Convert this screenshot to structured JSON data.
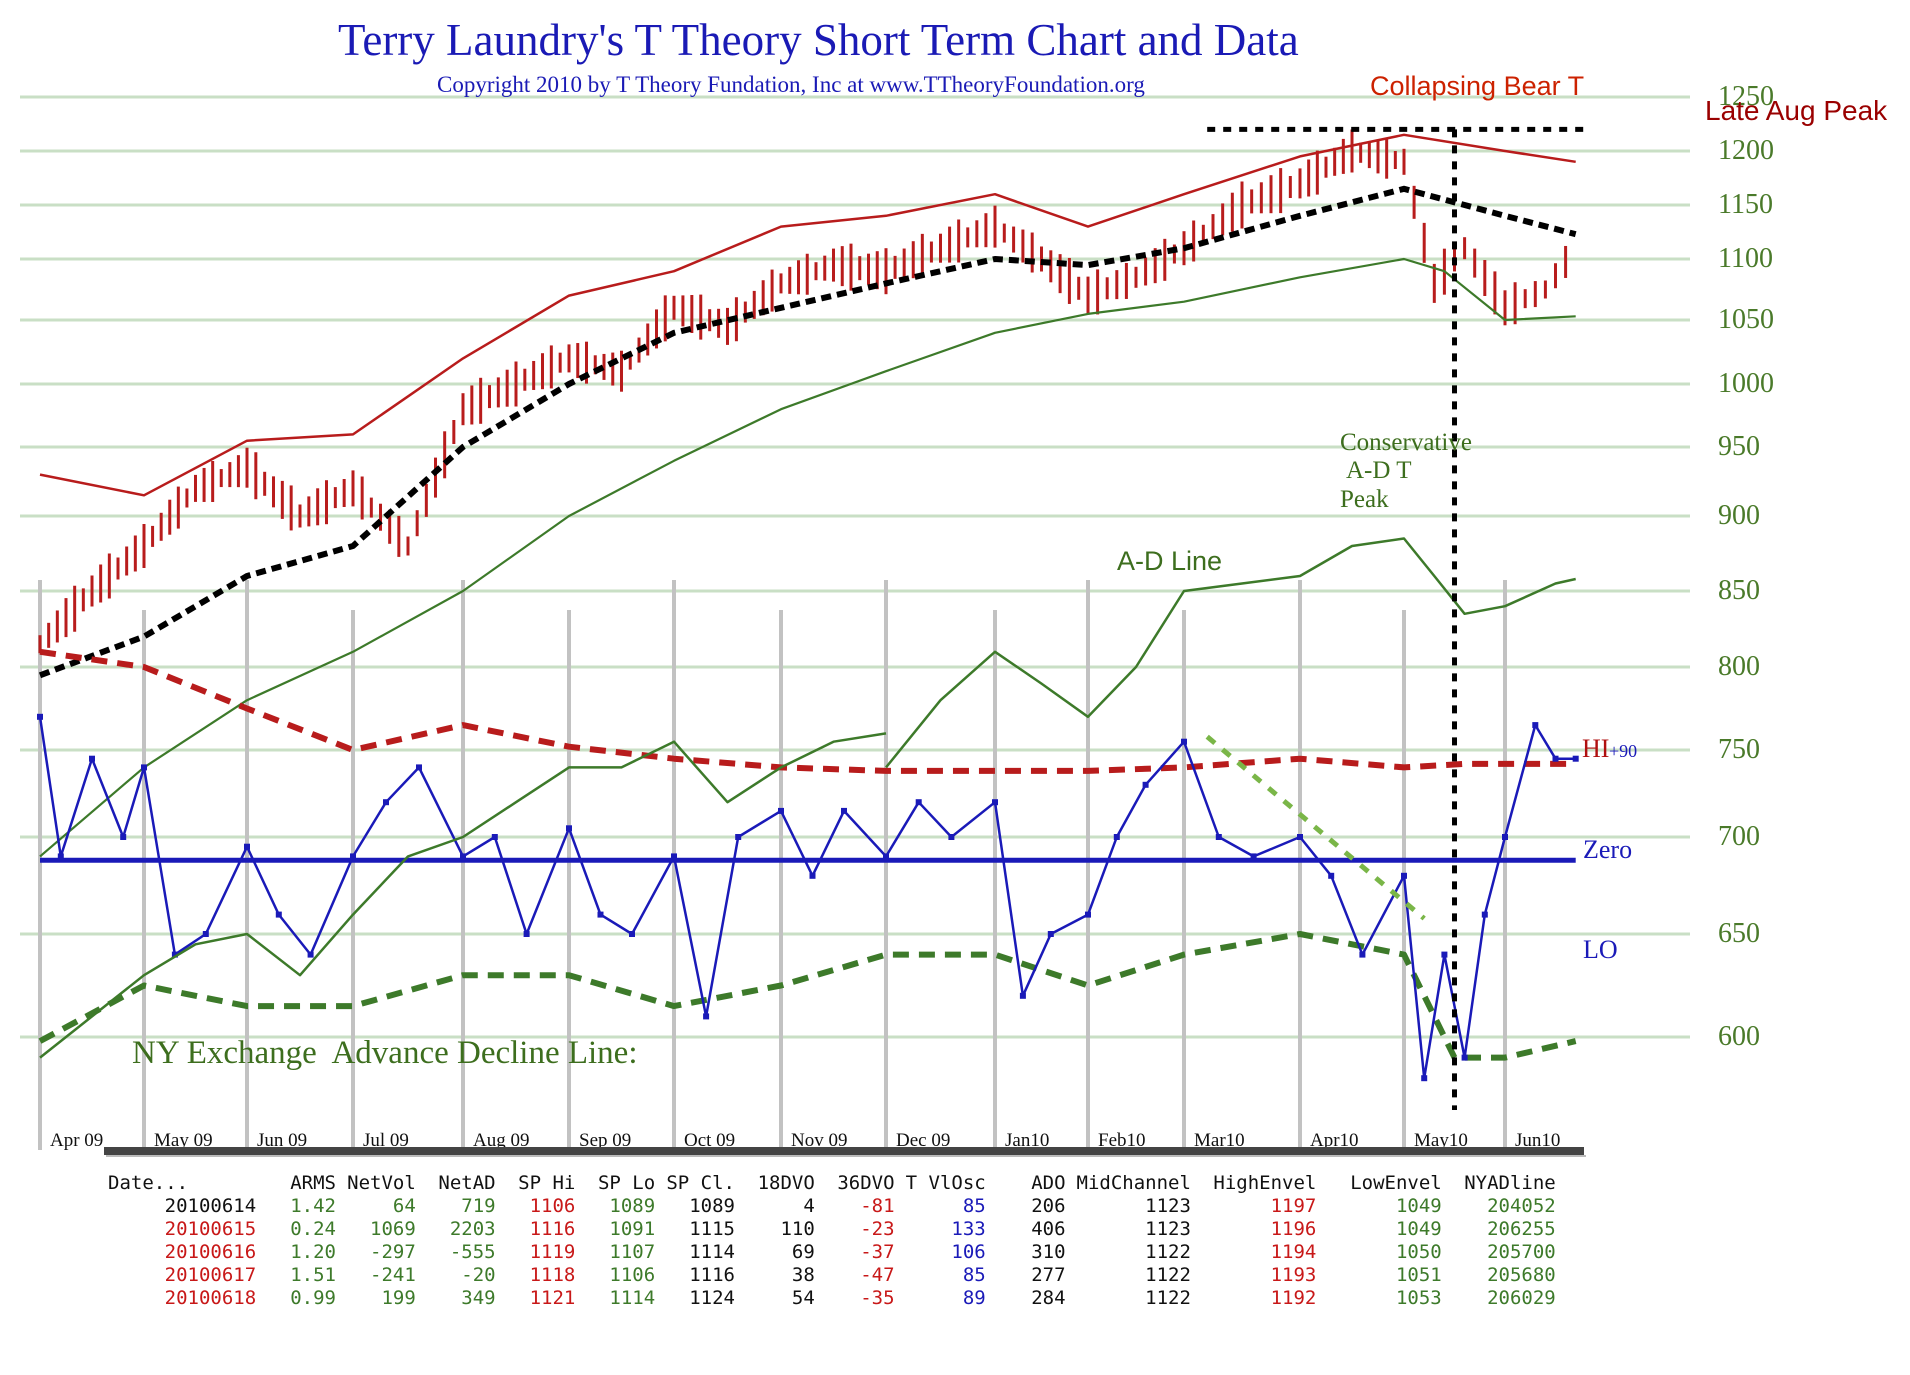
{
  "header": {
    "title": "Terry Laundry's T Theory Short Term Chart and Data",
    "copyright": "Copyright 2010 by T Theory Fundation, Inc at www.TTheoryFoundation.org"
  },
  "chart_data": {
    "type": "line",
    "title": "Terry Laundry's T Theory Short Term Chart and Data",
    "subtitle": "Copyright 2010 by T Theory Fundation, Inc at www.TTheoryFoundation.org",
    "xlabel": "",
    "ylabel": "",
    "x_ticks": [
      "Apr 09",
      "May 09",
      "Jun 09",
      "Jul 09",
      "Aug 09",
      "Sep 09",
      "Oct 09",
      "Nov 09",
      "Dec 09",
      "Jan10",
      "Feb10",
      "Mar10",
      "Apr10",
      "May10",
      "Jun10"
    ],
    "y_ticks": [
      1250,
      1200,
      1150,
      1100,
      1050,
      1000,
      950,
      900,
      850,
      800,
      750,
      700,
      650,
      600
    ],
    "ylim": [
      570,
      1260
    ],
    "grid": true,
    "legend": "none",
    "annotations": [
      {
        "text": "Collapsing Bear T",
        "color": "#cc2200"
      },
      {
        "text": "Late Aug Peak",
        "color": "#9a0000"
      },
      {
        "text": "Conservative",
        "color": "#3d6e1e"
      },
      {
        "text": "A-D T",
        "color": "#3d6e1e"
      },
      {
        "text": "Peak",
        "color": "#3d6e1e"
      },
      {
        "text": "A-D Line",
        "color": "#3d6e1e"
      },
      {
        "text": "HI",
        "color": "#b01010"
      },
      {
        "text": "+90",
        "color": "#1a1ab8"
      },
      {
        "text": "Zero",
        "color": "#1a1ab8"
      },
      {
        "text": "LO",
        "color": "#1a1ab8"
      },
      {
        "text": "NY Exchange  Advance Decline Line:",
        "color": "#3d6e1e"
      }
    ],
    "series": [
      {
        "name": "S&P 500 price bars (approx close)",
        "color": "#b81c1c",
        "month_index": [
          0,
          0.5,
          1,
          1.5,
          2,
          2.5,
          3,
          3.5,
          4,
          4.5,
          5,
          5.5,
          6,
          6.5,
          7,
          7.5,
          8,
          8.5,
          9,
          9.5,
          10,
          10.5,
          11,
          11.5,
          12,
          12.5,
          13,
          13.3,
          13.6,
          14,
          14.4,
          14.7
        ],
        "values": [
          815,
          850,
          880,
          920,
          935,
          900,
          920,
          880,
          980,
          1000,
          1020,
          1010,
          1060,
          1045,
          1080,
          1095,
          1090,
          1110,
          1130,
          1100,
          1070,
          1085,
          1110,
          1150,
          1170,
          1200,
          1190,
          1080,
          1110,
          1060,
          1075,
          1110
        ]
      },
      {
        "name": "Upper envelope",
        "color": "#b81c1c",
        "month_index": [
          0,
          1,
          2,
          3,
          4,
          5,
          6,
          7,
          8,
          9,
          10,
          11,
          12,
          13,
          14,
          14.7
        ],
        "values": [
          930,
          915,
          955,
          960,
          1020,
          1070,
          1090,
          1130,
          1140,
          1160,
          1130,
          1160,
          1195,
          1215,
          1200,
          1190
        ]
      },
      {
        "name": "Mid channel",
        "color": "#000000",
        "month_index": [
          0,
          1,
          2,
          3,
          4,
          5,
          6,
          7,
          8,
          9,
          10,
          11,
          12,
          13,
          14,
          14.7
        ],
        "values": [
          795,
          820,
          860,
          880,
          950,
          1000,
          1040,
          1060,
          1080,
          1100,
          1095,
          1110,
          1140,
          1165,
          1140,
          1123
        ]
      },
      {
        "name": "Lower envelope",
        "color": "#3d7a2a",
        "month_index": [
          0,
          1,
          2,
          3,
          4,
          5,
          6,
          7,
          8,
          9,
          10,
          11,
          12,
          13,
          13.4,
          14,
          14.7
        ],
        "values": [
          690,
          740,
          780,
          810,
          850,
          900,
          940,
          980,
          1010,
          1040,
          1055,
          1065,
          1085,
          1100,
          1090,
          1050,
          1053
        ]
      },
      {
        "name": "A-D Line",
        "color": "#3d7a2a",
        "month_index": [
          8,
          8.5,
          9,
          9.5,
          10,
          10.5,
          11,
          11.5,
          12,
          12.5,
          13,
          13.3,
          13.6,
          14,
          14.5,
          14.7
        ],
        "values": [
          740,
          780,
          810,
          790,
          770,
          800,
          850,
          855,
          860,
          880,
          885,
          860,
          835,
          840,
          855,
          858
        ]
      },
      {
        "name": "HI band (dashed)",
        "color": "#b81c1c",
        "month_index": [
          0,
          1,
          2,
          3,
          4,
          5,
          6,
          7,
          8,
          9,
          10,
          11,
          12,
          13,
          13.6,
          14,
          14.7
        ],
        "values": [
          810,
          800,
          775,
          750,
          765,
          752,
          745,
          740,
          738,
          738,
          738,
          740,
          745,
          740,
          742,
          742,
          742
        ]
      },
      {
        "name": "Zero line",
        "color": "#1a1ab8",
        "month_index": [
          0,
          14.7
        ],
        "values": [
          688,
          688
        ]
      },
      {
        "name": "LO band (dashed)",
        "color": "#3d7a2a",
        "month_index": [
          0,
          1,
          1.5,
          2,
          3,
          4,
          5,
          6,
          7,
          8,
          9,
          10,
          11,
          12,
          13,
          13.5,
          14,
          14.7
        ],
        "values": [
          598,
          625,
          620,
          615,
          615,
          630,
          630,
          615,
          625,
          640,
          640,
          625,
          640,
          650,
          640,
          590,
          590,
          598
        ]
      },
      {
        "name": "T VlOsc (blue oscillator)",
        "color": "#1a1ab8",
        "month_index": [
          0,
          0.2,
          0.5,
          0.8,
          1,
          1.3,
          1.6,
          2,
          2.3,
          2.6,
          3,
          3.3,
          3.6,
          4,
          4.3,
          4.6,
          5,
          5.3,
          5.6,
          6,
          6.3,
          6.6,
          7,
          7.3,
          7.6,
          8,
          8.3,
          8.6,
          9,
          9.3,
          9.6,
          10,
          10.3,
          10.6,
          11,
          11.3,
          11.6,
          12,
          12.3,
          12.6,
          13,
          13.2,
          13.4,
          13.6,
          13.8,
          14,
          14.3,
          14.5,
          14.7
        ],
        "values": [
          770,
          690,
          745,
          700,
          740,
          640,
          650,
          695,
          660,
          640,
          690,
          720,
          740,
          690,
          700,
          650,
          705,
          660,
          650,
          690,
          610,
          700,
          715,
          680,
          715,
          690,
          720,
          700,
          720,
          620,
          650,
          660,
          700,
          730,
          755,
          700,
          690,
          700,
          680,
          640,
          680,
          580,
          640,
          590,
          660,
          700,
          765,
          745,
          745
        ]
      },
      {
        "name": "NYSE Advance Decline Line (lower)",
        "color": "#3d7a2a",
        "month_index": [
          0,
          0.5,
          1,
          1.5,
          2,
          2.5,
          3,
          3.5,
          4,
          4.5,
          5,
          5.5,
          6,
          6.5,
          7,
          7.5,
          8
        ],
        "values": [
          590,
          610,
          630,
          645,
          650,
          630,
          660,
          690,
          700,
          720,
          740,
          740,
          755,
          720,
          740,
          755,
          760
        ]
      },
      {
        "name": "Light green dotted trendline",
        "color": "#7ab648",
        "month_index": [
          11.2,
          13.2
        ],
        "values": [
          758,
          658
        ]
      },
      {
        "name": "Late Aug Peak level",
        "color": "#000000",
        "month_index": [
          11.2,
          14.8
        ],
        "values": [
          1220,
          1220
        ]
      }
    ]
  },
  "table": {
    "headers": [
      "Date...",
      "ARMS",
      "NetVol",
      "NetAD",
      "SP Hi",
      "SP Lo",
      "SP Cl.",
      "18DVO",
      "36DVO",
      "T VlOsc",
      "ADO",
      "MidChannel",
      "HighEnvel",
      "LowEnvel",
      "NYADline"
    ],
    "rows": [
      [
        "20100614",
        "1.42",
        "64",
        "719",
        "1106",
        "1089",
        "1089",
        "4",
        "-81",
        "85",
        "206",
        "1123",
        "1197",
        "1049",
        "204052"
      ],
      [
        "20100615",
        "0.24",
        "1069",
        "2203",
        "1116",
        "1091",
        "1115",
        "110",
        "-23",
        "133",
        "406",
        "1123",
        "1196",
        "1049",
        "206255"
      ],
      [
        "20100616",
        "1.20",
        "-297",
        "-555",
        "1119",
        "1107",
        "1114",
        "69",
        "-37",
        "106",
        "310",
        "1122",
        "1194",
        "1050",
        "205700"
      ],
      [
        "20100617",
        "1.51",
        "-241",
        "-20",
        "1118",
        "1106",
        "1116",
        "38",
        "-47",
        "85",
        "277",
        "1122",
        "1193",
        "1051",
        "205680"
      ],
      [
        "20100618",
        "0.99",
        "199",
        "349",
        "1121",
        "1114",
        "1124",
        "54",
        "-35",
        "89",
        "284",
        "1122",
        "1192",
        "1053",
        "206029"
      ]
    ]
  }
}
